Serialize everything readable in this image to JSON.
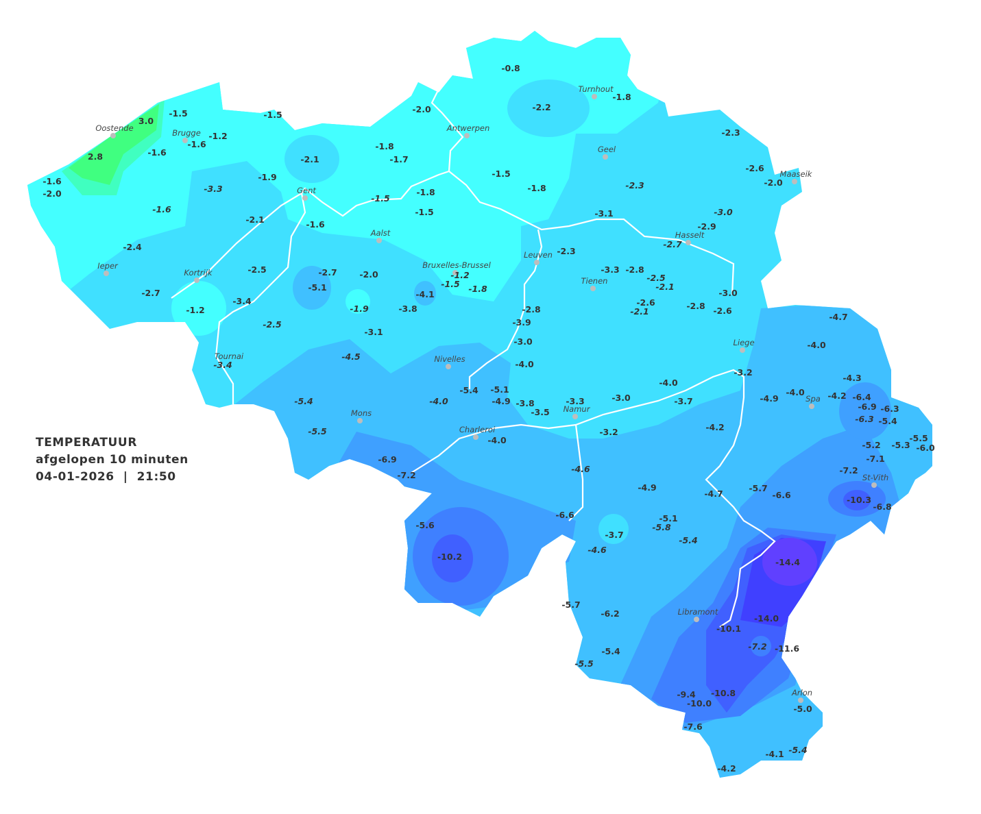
{
  "info_box": {
    "title": "TEMPERATUUR",
    "subtitle": "afgelopen 10 minuten",
    "datetime": "04-01-2026  |  21:50"
  },
  "colors": {
    "zone_warm_green": "#40ff80",
    "zone_green_cyan": "#40ffc0",
    "zone_cyan": "#44ffff",
    "zone_light_blue": "#40e0ff",
    "zone_sky_blue": "#40c0ff",
    "zone_blue": "#3fa0ff",
    "zone_mid_blue": "#3f80ff",
    "zone_deep_blue": "#4060ff",
    "zone_indigo": "#4040ff",
    "zone_violet": "#6040ff",
    "borders": "#ffffff",
    "city_dot": "#bdbdbd"
  },
  "cities": [
    "Oostende",
    "Brugge",
    "Antwerpen",
    "Turnhout",
    "Geel",
    "Maaseik",
    "Gent",
    "Aalst",
    "Hasselt",
    "Leuven",
    "Bruxelles-Brussel",
    "Ieper",
    "Kortrijk",
    "Tienen",
    "Liege",
    "Tournai",
    "Nivelles",
    "Spa",
    "Mons",
    "Charleroi",
    "Namur",
    "St-Vith",
    "Libramont",
    "Arlon"
  ],
  "stations": [
    {
      "value": "-0.8"
    },
    {
      "value": "-2.2"
    },
    {
      "value": "-1.8"
    },
    {
      "value": "-2.0"
    },
    {
      "value": "-1.5"
    },
    {
      "value": "3.0"
    },
    {
      "value": "-1.5"
    },
    {
      "value": "-1.2"
    },
    {
      "value": "-1.6"
    },
    {
      "value": "-1.6"
    },
    {
      "value": "2.8"
    },
    {
      "value": "-1.8"
    },
    {
      "value": "-1.7"
    },
    {
      "value": "-2.1"
    },
    {
      "value": "-2.3"
    },
    {
      "value": "-2.6"
    },
    {
      "value": "-2.0"
    },
    {
      "value": "-1.5"
    },
    {
      "value": "-1.8"
    },
    {
      "value": "-1.9"
    },
    {
      "value": "-3.3",
      "italic": true
    },
    {
      "value": "-1.6"
    },
    {
      "value": "-2.0"
    },
    {
      "value": "-1.8"
    },
    {
      "value": "-1.5",
      "italic": true
    },
    {
      "value": "-1.5"
    },
    {
      "value": "-2.3",
      "italic": true
    },
    {
      "value": "-1.6",
      "italic": true
    },
    {
      "value": "-3.1"
    },
    {
      "value": "-3.0",
      "italic": true
    },
    {
      "value": "-2.9"
    },
    {
      "value": "-2.1"
    },
    {
      "value": "-1.6"
    },
    {
      "value": "-2.7",
      "italic": true
    },
    {
      "value": "-2.4"
    },
    {
      "value": "-2.3"
    },
    {
      "value": "-2.5"
    },
    {
      "value": "-2.7"
    },
    {
      "value": "-2.0"
    },
    {
      "value": "-1.2",
      "italic": true
    },
    {
      "value": "-1.5",
      "italic": true
    },
    {
      "value": "-1.8",
      "italic": true
    },
    {
      "value": "-3.3"
    },
    {
      "value": "-2.8"
    },
    {
      "value": "-2.5",
      "italic": true
    },
    {
      "value": "-2.1",
      "italic": true
    },
    {
      "value": "-5.1"
    },
    {
      "value": "-4.1"
    },
    {
      "value": "-2.7"
    },
    {
      "value": "-3.4"
    },
    {
      "value": "-1.9",
      "italic": true
    },
    {
      "value": "-3.8"
    },
    {
      "value": "-2.6"
    },
    {
      "value": "-2.1",
      "italic": true
    },
    {
      "value": "-2.8"
    },
    {
      "value": "-3.0"
    },
    {
      "value": "-2.6"
    },
    {
      "value": "-1.2"
    },
    {
      "value": "-2.8"
    },
    {
      "value": "-3.9"
    },
    {
      "value": "-2.5",
      "italic": true
    },
    {
      "value": "-3.1"
    },
    {
      "value": "-3.0"
    },
    {
      "value": "-4.0"
    },
    {
      "value": "-4.5",
      "italic": true
    },
    {
      "value": "-3.4",
      "italic": true
    },
    {
      "value": "-4.7"
    },
    {
      "value": "-4.0"
    },
    {
      "value": "-3.2"
    },
    {
      "value": "-4.3"
    },
    {
      "value": "-4.0"
    },
    {
      "value": "-5.4"
    },
    {
      "value": "-5.1"
    },
    {
      "value": "-4.9"
    },
    {
      "value": "-3.8"
    },
    {
      "value": "-4.0",
      "italic": true
    },
    {
      "value": "-5.4",
      "italic": true
    },
    {
      "value": "-3.3"
    },
    {
      "value": "-3.0"
    },
    {
      "value": "-3.7"
    },
    {
      "value": "-3.5"
    },
    {
      "value": "-4.9"
    },
    {
      "value": "-4.0"
    },
    {
      "value": "-4.2"
    },
    {
      "value": "-6.4"
    },
    {
      "value": "-6.9"
    },
    {
      "value": "-6.3"
    },
    {
      "value": "-6.3",
      "italic": true
    },
    {
      "value": "-5.4"
    },
    {
      "value": "-5.5",
      "italic": true
    },
    {
      "value": "-4.2"
    },
    {
      "value": "-3.2"
    },
    {
      "value": "-4.0"
    },
    {
      "value": "-5.5"
    },
    {
      "value": "-5.2"
    },
    {
      "value": "-5.3"
    },
    {
      "value": "-6.0"
    },
    {
      "value": "-7.1"
    },
    {
      "value": "-6.9"
    },
    {
      "value": "-7.2"
    },
    {
      "value": "-4.6",
      "italic": true
    },
    {
      "value": "-7.2"
    },
    {
      "value": "-4.9"
    },
    {
      "value": "-4.7"
    },
    {
      "value": "-5.7"
    },
    {
      "value": "-6.6"
    },
    {
      "value": "-10.3"
    },
    {
      "value": "-6.8"
    },
    {
      "value": "-6.6"
    },
    {
      "value": "-5.1"
    },
    {
      "value": "-5.8",
      "italic": true
    },
    {
      "value": "-5.6"
    },
    {
      "value": "-3.7"
    },
    {
      "value": "-5.4",
      "italic": true
    },
    {
      "value": "-4.6",
      "italic": true
    },
    {
      "value": "-10.2"
    },
    {
      "value": "-14.4"
    },
    {
      "value": "-5.7"
    },
    {
      "value": "-6.2"
    },
    {
      "value": "-14.0"
    },
    {
      "value": "-10.1"
    },
    {
      "value": "-7.2",
      "italic": true
    },
    {
      "value": "-11.6"
    },
    {
      "value": "-5.4"
    },
    {
      "value": "-5.5",
      "italic": true
    },
    {
      "value": "-9.4"
    },
    {
      "value": "-10.8"
    },
    {
      "value": "-10.0"
    },
    {
      "value": "-5.0"
    },
    {
      "value": "-7.6"
    },
    {
      "value": "-4.1"
    },
    {
      "value": "-5.4",
      "italic": true
    },
    {
      "value": "-4.2"
    }
  ]
}
